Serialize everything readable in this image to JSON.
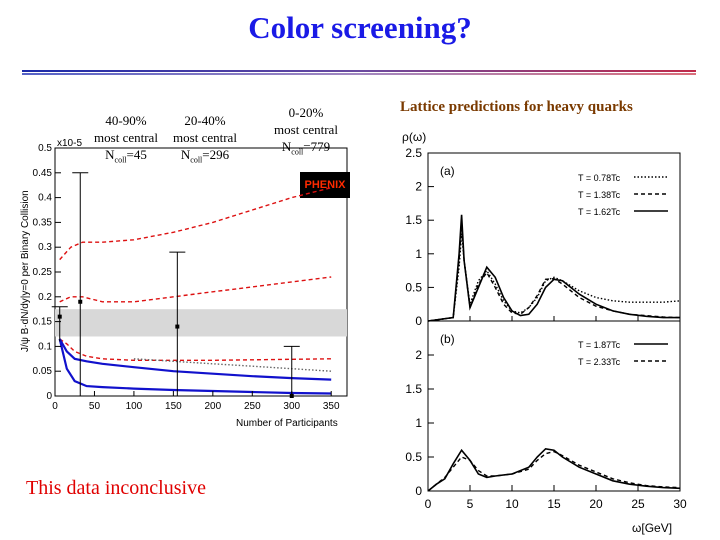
{
  "slide": {
    "title": "Color screening?",
    "conclusion": "This data inconclusive",
    "lattice_title": "Lattice predictions for heavy quarks"
  },
  "centrality": [
    {
      "range": "40-90%",
      "label": "most central",
      "ncoll_prefix": "N",
      "ncoll_sub": "coll",
      "ncoll_value": "=45"
    },
    {
      "range": "20-40%",
      "label": "most central",
      "ncoll_prefix": "N",
      "ncoll_sub": "coll",
      "ncoll_value": "=296"
    },
    {
      "range": "0-20%",
      "label": "most central",
      "ncoll_prefix": "N",
      "ncoll_sub": "coll",
      "ncoll_value": "=779"
    }
  ],
  "logo_text": "PHENIX",
  "colors": {
    "title": "#1a1ae6",
    "data_dashed": "#dd1111",
    "theory_solid": "#1111cc",
    "band": "#d8d8d8",
    "conclusion": "#e00000",
    "lattice_title": "#7a3a00"
  },
  "chart_data": [
    {
      "type": "line",
      "ylabel": "J/ψ B·dN/dy|y=0 per Binary Collision",
      "xlabel": "Number of Participants",
      "xlim": [
        0,
        370
      ],
      "ylim": [
        0,
        0.5
      ],
      "y_multiplier": "x10-5",
      "x_ticks": [
        "0",
        "50",
        "100",
        "150",
        "200",
        "250",
        "300",
        "350"
      ],
      "y_ticks": [
        "0",
        "0.05",
        "0.1",
        "0.15",
        "0.2",
        "0.25",
        "0.3",
        "0.35",
        "0.4",
        "0.45",
        "0.5"
      ],
      "band": [
        0.12,
        0.175
      ],
      "points": [
        {
          "x": 6,
          "y": 0.16,
          "err_low": 0.11,
          "err_high": 0.18
        },
        {
          "x": 32,
          "y": 0.19,
          "err_low": 0.0,
          "err_high": 0.45
        },
        {
          "x": 155,
          "y": 0.14,
          "err_low": 0.0,
          "err_high": 0.29
        },
        {
          "x": 300,
          "y": 0.0,
          "err_low": 0.0,
          "err_high": 0.1
        }
      ],
      "series": [
        {
          "style": "dashed",
          "color": "#dd1111",
          "x": [
            6,
            20,
            35,
            60,
            100,
            150,
            200,
            250,
            300,
            350
          ],
          "y": [
            0.275,
            0.3,
            0.31,
            0.31,
            0.315,
            0.33,
            0.35,
            0.375,
            0.4,
            0.42
          ]
        },
        {
          "style": "dashed",
          "color": "#dd1111",
          "x": [
            6,
            20,
            35,
            60,
            100,
            150,
            200,
            250,
            300,
            350
          ],
          "y": [
            0.19,
            0.2,
            0.2,
            0.19,
            0.19,
            0.2,
            0.21,
            0.22,
            0.23,
            0.24
          ]
        },
        {
          "style": "dashed",
          "color": "#dd1111",
          "x": [
            6,
            15,
            25,
            40,
            60,
            100,
            150,
            200,
            250,
            300,
            350
          ],
          "y": [
            0.115,
            0.105,
            0.09,
            0.08,
            0.075,
            0.072,
            0.072,
            0.072,
            0.073,
            0.074,
            0.075
          ]
        },
        {
          "style": "solid",
          "color": "#1111cc",
          "x": [
            6,
            15,
            25,
            40,
            60,
            100,
            150,
            200,
            250,
            300,
            350
          ],
          "y": [
            0.115,
            0.09,
            0.075,
            0.07,
            0.065,
            0.058,
            0.05,
            0.045,
            0.04,
            0.036,
            0.033
          ]
        },
        {
          "style": "solid",
          "color": "#1111cc",
          "x": [
            6,
            15,
            25,
            40,
            60,
            100,
            150,
            200,
            250,
            300,
            350
          ],
          "y": [
            0.115,
            0.055,
            0.03,
            0.02,
            0.018,
            0.015,
            0.012,
            0.01,
            0.008,
            0.006,
            0.005
          ]
        },
        {
          "style": "dotted",
          "color": "#666666",
          "x": [
            100,
            150,
            200,
            250,
            300,
            350
          ],
          "y": [
            0.075,
            0.07,
            0.065,
            0.06,
            0.055,
            0.05
          ]
        }
      ]
    },
    {
      "type": "line",
      "panel": "(a)",
      "ylabel": "ρ(ω)",
      "xlim": [
        0,
        30
      ],
      "ylim": [
        0,
        2.5
      ],
      "y_ticks": [
        "0",
        "0.5",
        "1",
        "1.5",
        "2",
        "2.5"
      ],
      "legend": [
        "T = 0.78Tc",
        "T = 1.38Tc",
        "T = 1.62Tc"
      ],
      "series": [
        {
          "name": "T = 0.78Tc",
          "style": "dotted",
          "x": [
            0,
            3,
            3.7,
            4,
            4.3,
            5,
            6,
            7,
            8,
            9,
            10,
            11,
            12,
            13,
            14,
            15,
            16,
            18,
            20,
            22,
            24,
            26,
            28,
            30
          ],
          "y": [
            0,
            0.05,
            0.8,
            1.3,
            0.9,
            0.25,
            0.6,
            0.75,
            0.55,
            0.3,
            0.15,
            0.12,
            0.2,
            0.35,
            0.6,
            0.65,
            0.6,
            0.45,
            0.35,
            0.3,
            0.28,
            0.28,
            0.28,
            0.3
          ]
        },
        {
          "name": "T = 1.38Tc",
          "style": "dashed",
          "x": [
            0,
            3,
            3.7,
            4,
            4.3,
            5,
            6,
            7,
            8,
            9,
            10,
            11,
            12,
            13,
            14,
            15,
            16,
            18,
            20,
            22,
            24,
            26,
            28,
            30
          ],
          "y": [
            0,
            0.05,
            0.9,
            1.45,
            0.9,
            0.2,
            0.55,
            0.72,
            0.5,
            0.25,
            0.12,
            0.1,
            0.2,
            0.38,
            0.62,
            0.63,
            0.55,
            0.35,
            0.22,
            0.15,
            0.1,
            0.08,
            0.06,
            0.05
          ]
        },
        {
          "name": "T = 1.62Tc",
          "style": "solid",
          "x": [
            0,
            3,
            3.7,
            4,
            4.3,
            5,
            6,
            7,
            8,
            9,
            10,
            11,
            12,
            13,
            14,
            15,
            16,
            18,
            20,
            22,
            24,
            26,
            28,
            30
          ],
          "y": [
            0,
            0.05,
            1.0,
            1.58,
            0.9,
            0.2,
            0.5,
            0.8,
            0.65,
            0.35,
            0.15,
            0.08,
            0.1,
            0.25,
            0.5,
            0.62,
            0.6,
            0.4,
            0.25,
            0.15,
            0.1,
            0.07,
            0.05,
            0.05
          ]
        }
      ]
    },
    {
      "type": "line",
      "panel": "(b)",
      "xlabel": "ω[GeV]",
      "xlim": [
        0,
        30
      ],
      "ylim": [
        0,
        2.5
      ],
      "x_ticks": [
        "0",
        "5",
        "10",
        "15",
        "20",
        "25",
        "30"
      ],
      "y_ticks": [
        "0",
        "0.5",
        "1",
        "1.5",
        "2"
      ],
      "legend": [
        "T = 1.87Tc",
        "T = 2.33Tc"
      ],
      "series": [
        {
          "name": "T = 1.87Tc",
          "style": "solid",
          "x": [
            0,
            1,
            2,
            3,
            4,
            5,
            6,
            7,
            8,
            10,
            12,
            13,
            14,
            15,
            16,
            18,
            20,
            22,
            24,
            26,
            28,
            30
          ],
          "y": [
            0,
            0.1,
            0.18,
            0.4,
            0.6,
            0.45,
            0.25,
            0.2,
            0.22,
            0.25,
            0.35,
            0.5,
            0.62,
            0.6,
            0.5,
            0.35,
            0.25,
            0.15,
            0.1,
            0.07,
            0.05,
            0.04
          ]
        },
        {
          "name": "T = 2.33Tc",
          "style": "dashed",
          "x": [
            0,
            1,
            2,
            3,
            4,
            5,
            6,
            7,
            8,
            10,
            12,
            13,
            14,
            15,
            16,
            18,
            20,
            22,
            24,
            26,
            28,
            30
          ],
          "y": [
            0,
            0.1,
            0.2,
            0.35,
            0.5,
            0.45,
            0.3,
            0.22,
            0.22,
            0.25,
            0.32,
            0.45,
            0.55,
            0.58,
            0.52,
            0.38,
            0.28,
            0.18,
            0.12,
            0.08,
            0.06,
            0.05
          ]
        }
      ]
    }
  ]
}
